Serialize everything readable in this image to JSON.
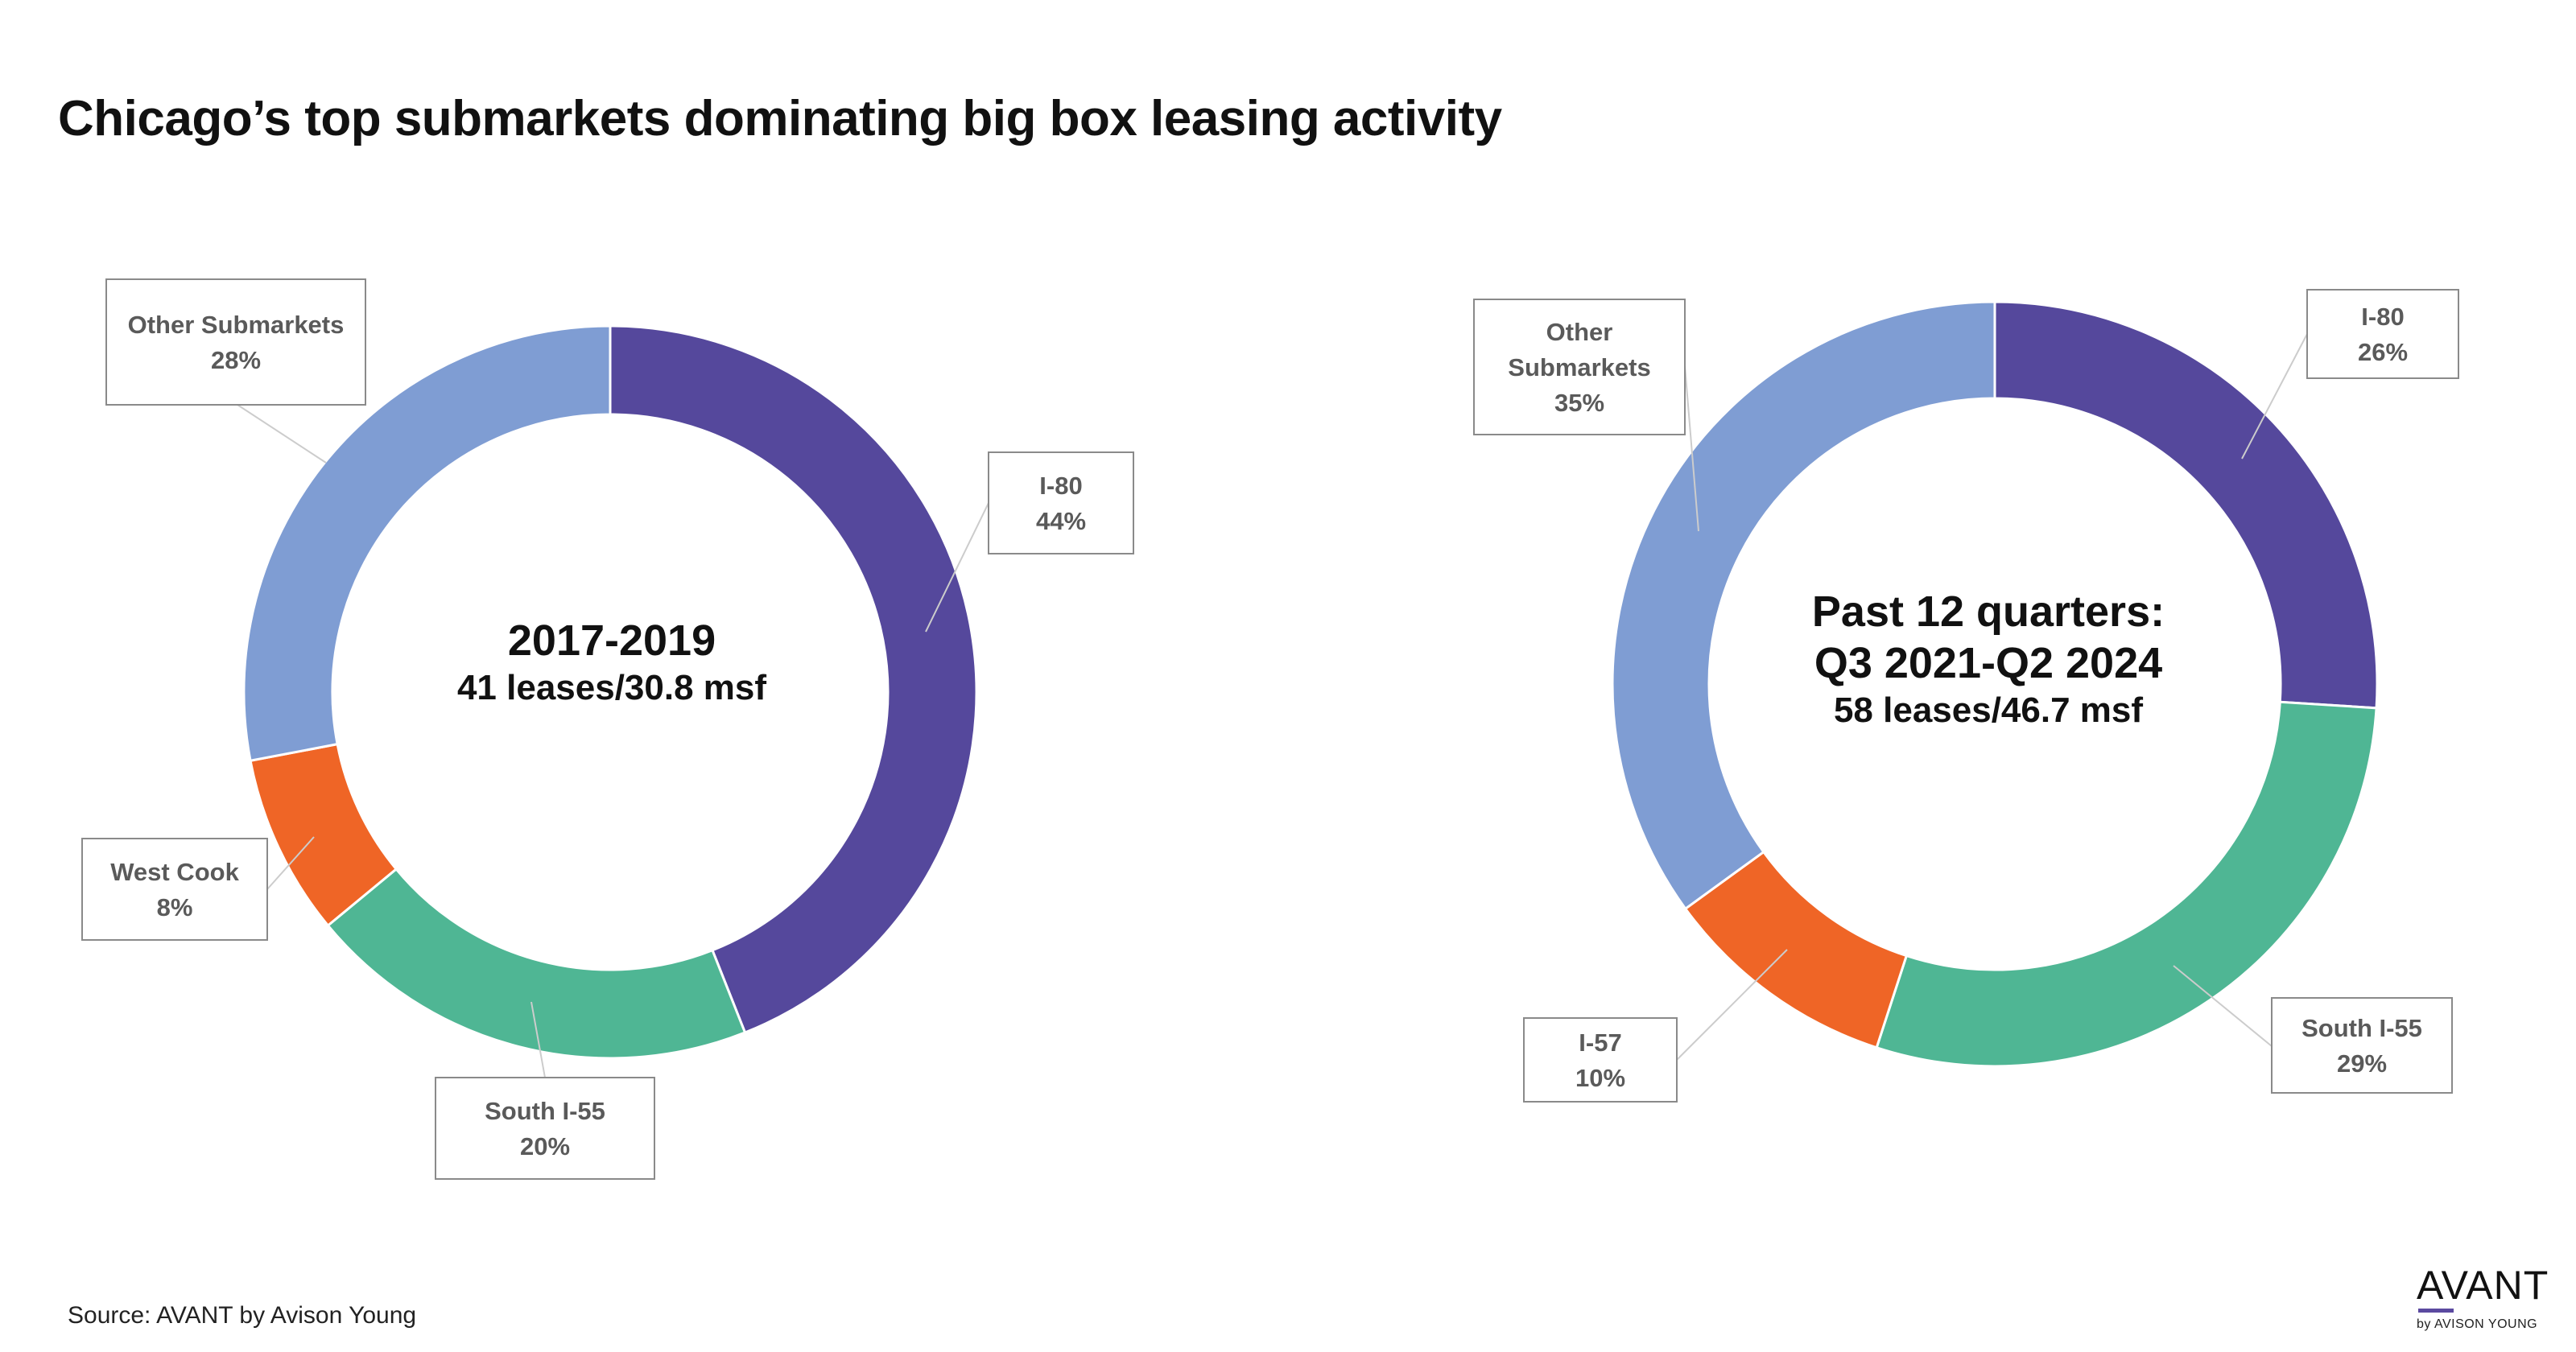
{
  "title": "Chicago’s top submarkets dominating big box leasing activity",
  "source": "Source: AVANT by Avison Young",
  "logo": {
    "word": "AVANT",
    "sub": "by AVISON YOUNG"
  },
  "colors": {
    "I-80": "#55489c",
    "South I-55": "#4fb694",
    "West Cook": "#ef6526",
    "I-57": "#ef6526",
    "Other Submarkets": "#7f9dd3"
  },
  "chart_data": [
    {
      "type": "pie",
      "center_lines": [
        "2017-2019",
        "41 leases/30.8 msf"
      ],
      "categories": [
        "I-80",
        "South I-55",
        "West Cook",
        "Other Submarkets"
      ],
      "values": [
        44,
        20,
        8,
        28
      ],
      "labels": [
        {
          "name": "I-80",
          "value": "44%"
        },
        {
          "name": "South I-55",
          "value": "20%"
        },
        {
          "name": "West Cook",
          "value": "8%"
        },
        {
          "name": "Other Submarkets",
          "value": "28%"
        }
      ]
    },
    {
      "type": "pie",
      "center_lines": [
        "Past 12 quarters:",
        "Q3 2021-Q2 2024",
        "58 leases/46.7 msf"
      ],
      "categories": [
        "I-80",
        "South I-55",
        "I-57",
        "Other Submarkets"
      ],
      "values": [
        26,
        29,
        10,
        35
      ],
      "labels": [
        {
          "name": "I-80",
          "value": "26%"
        },
        {
          "name": "South I-55",
          "value": "29%"
        },
        {
          "name": "I-57",
          "value": "10%"
        },
        {
          "name": "Other\nSubmarkets",
          "value": "35%"
        }
      ]
    }
  ]
}
